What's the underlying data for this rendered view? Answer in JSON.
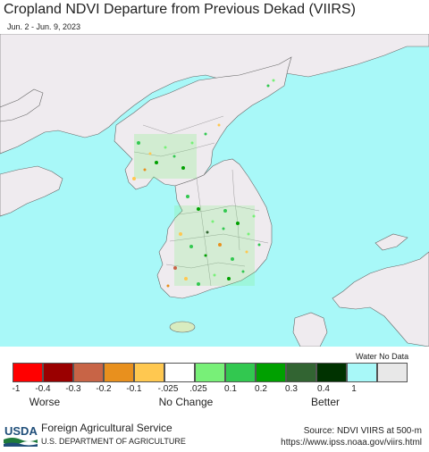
{
  "title": "Cropland NDVI Departure from Previous Dekad (VIIRS)",
  "date_range": "Jun. 2 - Jun. 9, 2023",
  "colors": {
    "water": "#a8f8f8",
    "land_nodata": "#efebef",
    "border": "#666666"
  },
  "legend": {
    "swatches": [
      {
        "color": "#ff0000"
      },
      {
        "color": "#9a0000"
      },
      {
        "color": "#c86446"
      },
      {
        "color": "#e8901e"
      },
      {
        "color": "#ffc850"
      },
      {
        "color": "#ffffff"
      },
      {
        "color": "#78f078"
      },
      {
        "color": "#32c850"
      },
      {
        "color": "#00a000"
      },
      {
        "color": "#326432"
      },
      {
        "color": "#003200"
      },
      {
        "color": "#a8f8f8"
      },
      {
        "color": "#e8e8e8"
      }
    ],
    "tick_labels": [
      "-1",
      "-0.4",
      "-0.3",
      "-0.2",
      "-0.1",
      "-.025",
      ".025",
      "0.1",
      "0.2",
      "0.3",
      "0.4",
      "1"
    ],
    "water_nodata_label": "Water No Data",
    "worse_label": "Worse",
    "no_change_label": "No Change",
    "better_label": "Better"
  },
  "footer": {
    "logo_text": "USDA",
    "agency": "Foreign Agricultural Service",
    "department": "U.S. DEPARTMENT OF AGRICULTURE",
    "source": "Source: NDVI VIIRS at 500-m",
    "url": "https://www.ipss.noaa.gov/viirs.html"
  }
}
